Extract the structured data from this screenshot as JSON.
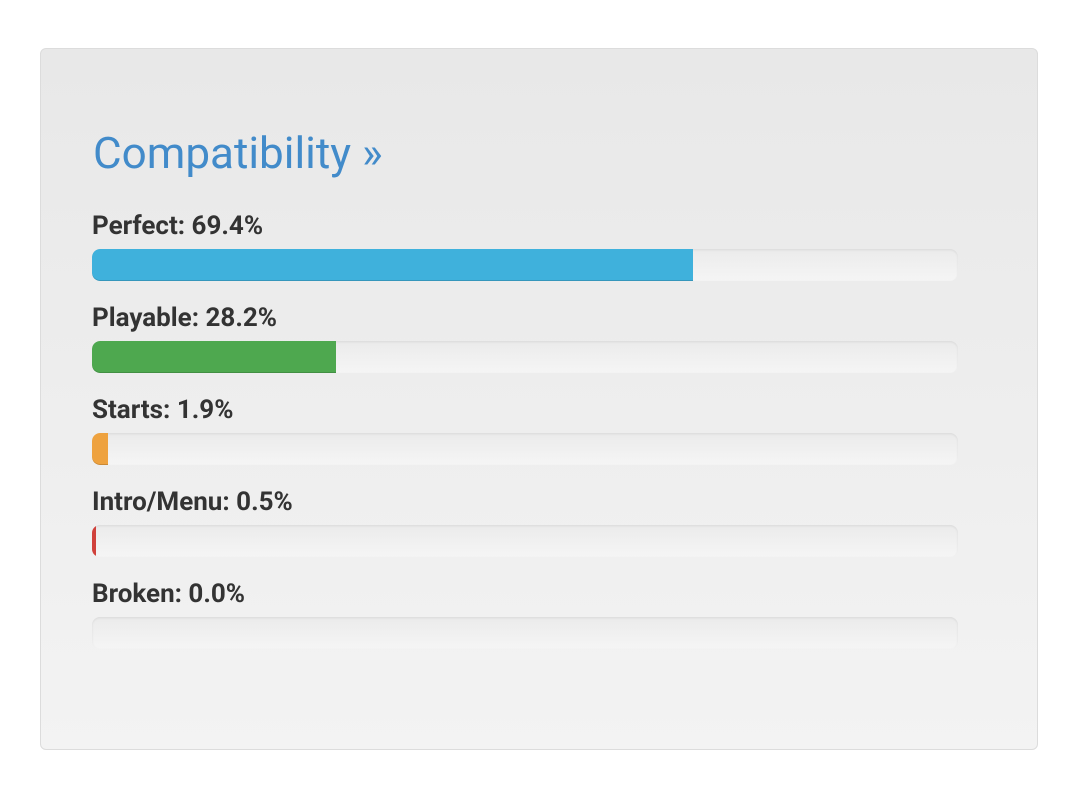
{
  "panel": {
    "title": "Compatibility »",
    "range": [
      0,
      100
    ],
    "items": [
      {
        "label": "Perfect: 69.4%",
        "value": 69.4,
        "color": "#3fb1dc"
      },
      {
        "label": "Playable: 28.2%",
        "value": 28.2,
        "color": "#4ea84f"
      },
      {
        "label": "Starts: 1.9%",
        "value": 1.9,
        "color": "#eea23f"
      },
      {
        "label": "Intro/Menu: 0.5%",
        "value": 0.5,
        "color": "#d0413b"
      },
      {
        "label": "Broken: 0.0%",
        "value": 0.0,
        "color": "#d0413b"
      }
    ]
  }
}
